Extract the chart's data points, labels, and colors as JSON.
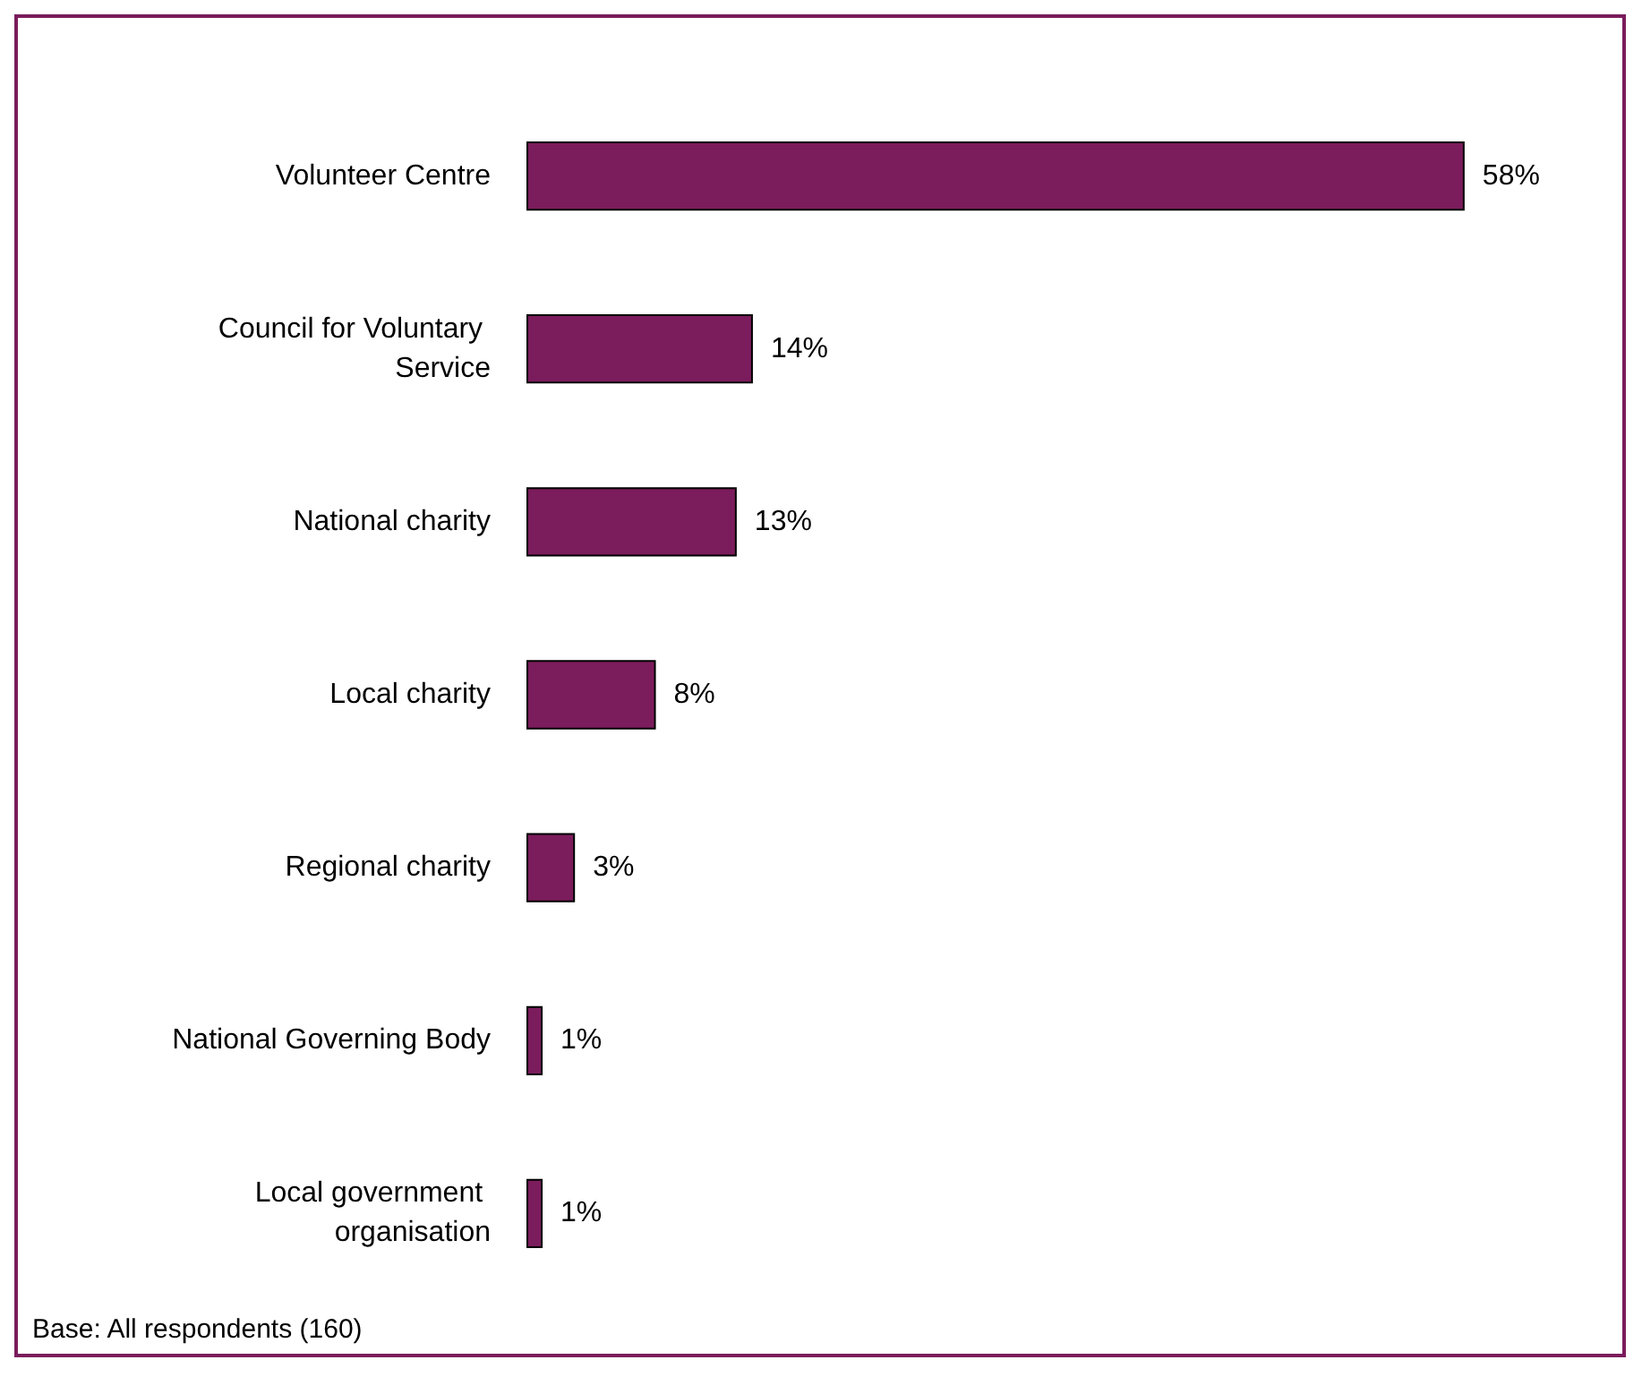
{
  "chart_data": {
    "type": "bar",
    "orientation": "horizontal",
    "categories": [
      "Volunteer Centre",
      "Council for Voluntary Service",
      "National charity",
      "Local charity",
      "Regional charity",
      "National Governing Body",
      "Local government organisation"
    ],
    "values": [
      58,
      14,
      13,
      8,
      3,
      1,
      1
    ],
    "value_labels": [
      "58%",
      "14%",
      "13%",
      "8%",
      "3%",
      "1%",
      "1%"
    ],
    "color": "#7b1c5c",
    "annotations": [
      "Base: All respondents (160)"
    ]
  }
}
